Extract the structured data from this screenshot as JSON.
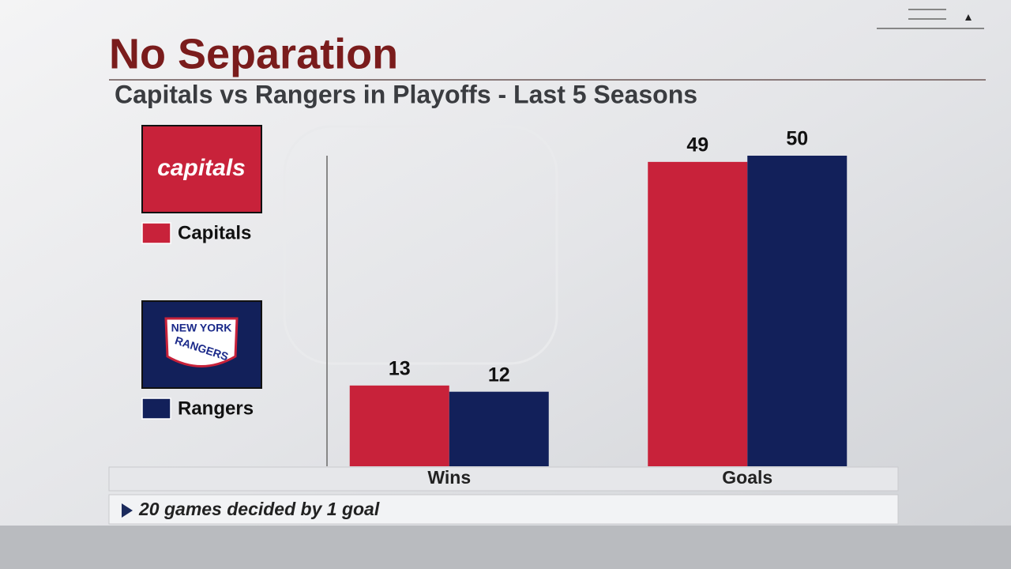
{
  "chart_data": {
    "type": "bar",
    "title": "No Separation",
    "subtitle": "Capitals vs Rangers in Playoffs - Last 5 Seasons",
    "categories": [
      "Wins",
      "Goals"
    ],
    "series": [
      {
        "name": "Capitals",
        "color": "#c8223a",
        "values": [
          13,
          49
        ],
        "logo": [
          "capitals"
        ]
      },
      {
        "name": "Rangers",
        "color": "#12205a",
        "values": [
          12,
          50
        ],
        "logo": [
          "NEW YORK",
          "RANGERS"
        ]
      }
    ],
    "ylim": [
      0,
      50
    ],
    "annotation": "20 games decided by 1 goal"
  }
}
